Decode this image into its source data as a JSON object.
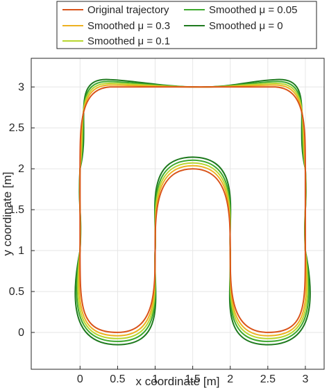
{
  "chart_data": {
    "type": "line",
    "title": "",
    "xlabel": "x coordinate [m]",
    "ylabel": "y coordinate [m]",
    "xlim": [
      -0.65,
      3.25
    ],
    "ylim": [
      -0.45,
      3.35
    ],
    "xticks": [
      0,
      0.5,
      1,
      1.5,
      2,
      2.5,
      3
    ],
    "yticks": [
      0,
      0.5,
      1,
      1.5,
      2,
      2.5,
      3
    ],
    "xtick_labels": [
      "0",
      "0.5",
      "1",
      "1.5",
      "2",
      "2.5",
      "3"
    ],
    "ytick_labels": [
      "0",
      "0.5",
      "1",
      "1.5",
      "2",
      "2.5",
      "3"
    ],
    "grid": true,
    "legend_position": "top",
    "waypoints_x": [
      1,
      1,
      0,
      0,
      1,
      1,
      2,
      2,
      3,
      3,
      2,
      2,
      1
    ],
    "waypoints_y": [
      1,
      0,
      0,
      3,
      3,
      3,
      3,
      3,
      3,
      0,
      0,
      1,
      1
    ],
    "upper_arch": {
      "x": [
        1,
        1,
        2,
        2
      ],
      "y": [
        1,
        2,
        2,
        1
      ]
    },
    "series": [
      {
        "name": "Original trajectory",
        "legend_label": "Original trajectory",
        "mu": null,
        "overshoot": 0.0,
        "color": "#D95319"
      },
      {
        "name": "Smoothed μ = 0.3",
        "legend_label": "Smoothed μ = 0.3",
        "mu": 0.3,
        "overshoot": 0.04,
        "color": "#EDB120"
      },
      {
        "name": "Smoothed μ = 0.1",
        "legend_label": "Smoothed μ = 0.1",
        "mu": 0.1,
        "overshoot": 0.075,
        "color": "#B8D62E"
      },
      {
        "name": "Smoothed μ = 0.05",
        "legend_label": "Smoothed μ = 0.05",
        "mu": 0.05,
        "overshoot": 0.11,
        "color": "#3CA82C"
      },
      {
        "name": "Smoothed μ = 0",
        "legend_label": "Smoothed μ = 0",
        "mu": 0,
        "overshoot": 0.15,
        "color": "#1E7A1E"
      }
    ]
  }
}
